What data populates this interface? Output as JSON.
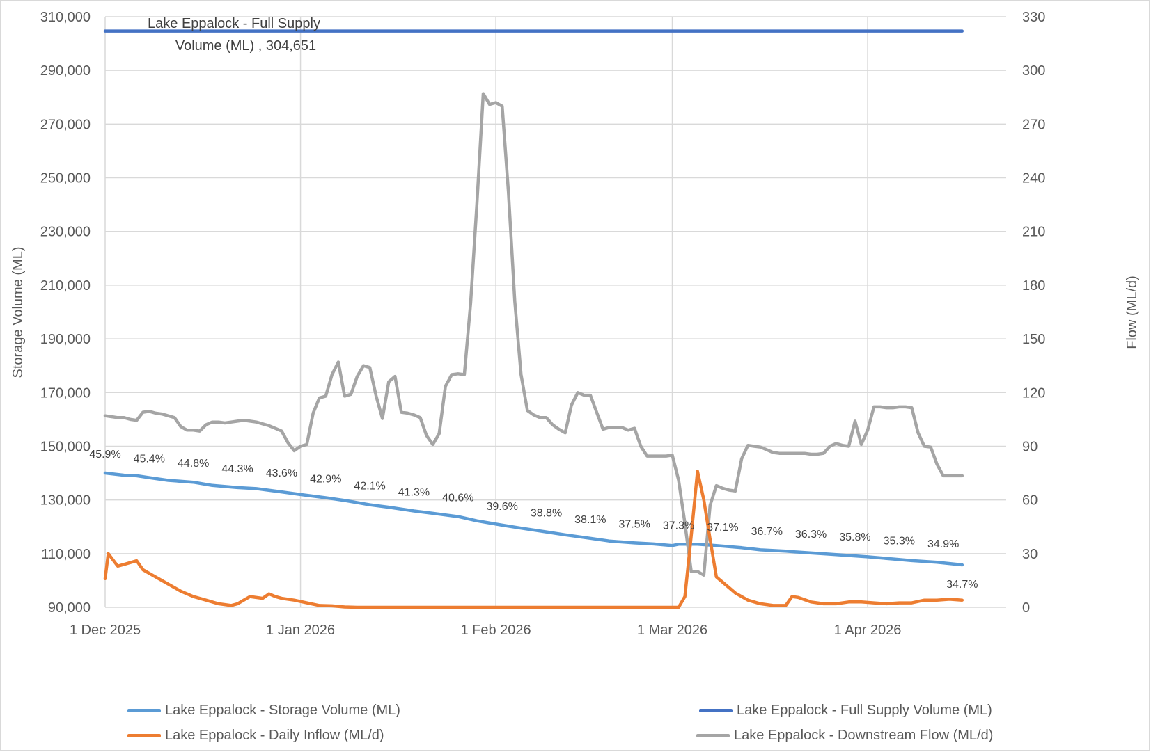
{
  "chart_data": {
    "type": "line",
    "title": "",
    "x_start": "1 Dec 2025",
    "x_tick_labels": [
      "1 Dec 2025",
      "1 Jan 2026",
      "1 Feb 2026",
      "1 Mar 2026",
      "1 Apr 2026"
    ],
    "x_tick_days": [
      0,
      31,
      62,
      90,
      121
    ],
    "ylabel_left": "Storage Volume (ML)",
    "ylabel_right": "Flow (ML/d)",
    "ylim_left": [
      90000,
      310000
    ],
    "ylim_right": [
      0,
      330
    ],
    "left_ticks": [
      "90,000",
      "110,000",
      "130,000",
      "150,000",
      "170,000",
      "190,000",
      "210,000",
      "230,000",
      "250,000",
      "270,000",
      "290,000",
      "310,000"
    ],
    "right_ticks": [
      "0",
      "30",
      "60",
      "90",
      "120",
      "150",
      "180",
      "210",
      "240",
      "270",
      "300",
      "330"
    ],
    "grid": true,
    "legend_position": "bottom",
    "series": [
      {
        "name": "Lake Eppalock - Storage Volume (ML)",
        "axis": "left",
        "color": "#5b9bd5",
        "days": [
          0,
          3,
          5,
          7,
          10,
          14,
          17,
          21,
          24,
          28,
          31,
          35,
          38,
          42,
          45,
          49,
          52,
          56,
          59,
          63,
          66,
          70,
          73,
          77,
          80,
          84,
          87,
          90,
          91,
          94,
          97,
          101,
          104,
          108,
          111,
          115,
          118,
          121,
          125,
          128,
          132,
          134,
          136
        ],
        "values": [
          140000,
          139200,
          139000,
          138300,
          137300,
          136600,
          135400,
          134600,
          134200,
          133000,
          132000,
          130800,
          129800,
          128200,
          127300,
          125900,
          125000,
          123800,
          122200,
          120600,
          119500,
          118100,
          117000,
          115700,
          114700,
          114000,
          113600,
          113000,
          113500,
          113500,
          113000,
          112200,
          111400,
          110900,
          110400,
          109800,
          109300,
          108800,
          108000,
          107400,
          106800,
          106300,
          105800
        ]
      },
      {
        "name": "Lake Eppalock - Full Supply Volume (ML)",
        "axis": "left",
        "color": "#4472c4",
        "days": [
          0,
          136
        ],
        "values": [
          304651,
          304651
        ]
      },
      {
        "name": "Lake Eppalock - Daily Inflow (ML/d)",
        "axis": "right",
        "color": "#ed7d31",
        "days": [
          0,
          0.5,
          2,
          3,
          5,
          6,
          8,
          10,
          12,
          14,
          16,
          18,
          19,
          20,
          21,
          22,
          23,
          24,
          25,
          26,
          27,
          28,
          30,
          32,
          34,
          36,
          38,
          40,
          41,
          42,
          44,
          90,
          91,
          92,
          93,
          94,
          95,
          96,
          97,
          98,
          100,
          102,
          104,
          106,
          108,
          109,
          110,
          112,
          114,
          116,
          118,
          120,
          122,
          124,
          126,
          128,
          130,
          132,
          134,
          136
        ],
        "values": [
          16,
          30,
          23,
          24,
          26,
          21,
          17,
          13,
          9,
          6,
          4,
          2,
          1.5,
          1,
          2,
          4,
          6,
          5.5,
          5,
          7.5,
          6,
          5,
          4,
          2.5,
          1,
          0.8,
          0.2,
          0,
          0,
          0,
          0,
          0,
          0,
          6,
          40,
          76,
          60,
          38,
          17,
          14,
          8,
          4,
          2,
          1,
          1,
          6,
          5.5,
          3,
          2,
          2,
          3,
          3,
          2.5,
          2,
          2.5,
          2.5,
          4,
          4,
          4.5,
          4
        ]
      },
      {
        "name": "Lake Eppalock - Downstream Flow (ML/d)",
        "axis": "right",
        "color": "#a5a5a5",
        "days": [
          0,
          1,
          2,
          3,
          4,
          5,
          6,
          7,
          8,
          9,
          10,
          11,
          12,
          13,
          14,
          15,
          16,
          17,
          18,
          19,
          20,
          21,
          22,
          23,
          24,
          25,
          26,
          27,
          28,
          29,
          30,
          31,
          32,
          33,
          34,
          35,
          36,
          37,
          38,
          39,
          40,
          41,
          42,
          43,
          44,
          45,
          46,
          47,
          48,
          49,
          50,
          51,
          52,
          53,
          54,
          55,
          56,
          57,
          58,
          59,
          60,
          61,
          62,
          63,
          64,
          65,
          66,
          67,
          68,
          69,
          70,
          71,
          72,
          73,
          74,
          75,
          76,
          77,
          78,
          79,
          80,
          81,
          82,
          83,
          84,
          85,
          86,
          87,
          88,
          89,
          90,
          91,
          92,
          93,
          94,
          95,
          96,
          97,
          98,
          99,
          100,
          101,
          102,
          103,
          104,
          105,
          106,
          107,
          108,
          109,
          110,
          111,
          112,
          113,
          114,
          115,
          116,
          117,
          118,
          119,
          120,
          121,
          122,
          123,
          124,
          125,
          126,
          127,
          128,
          129,
          130,
          131,
          132,
          133,
          134,
          135,
          136
        ],
        "values": [
          107,
          106.5,
          106,
          106,
          105,
          104.5,
          109,
          109.5,
          108.5,
          108,
          107,
          106,
          101,
          99,
          99,
          98.5,
          102,
          103.5,
          103.5,
          103,
          103.5,
          104,
          104.5,
          104,
          103.5,
          102.5,
          101.5,
          100,
          98.5,
          92,
          87.5,
          90,
          91,
          108.5,
          117,
          118,
          130,
          137,
          118,
          119,
          129,
          135,
          134,
          118,
          105.5,
          126,
          129,
          109,
          108.5,
          107.5,
          106,
          96,
          91,
          97,
          123.5,
          130,
          130.5,
          130,
          170,
          226,
          287,
          281,
          282,
          280,
          232,
          171,
          130,
          110,
          107.5,
          106,
          106,
          102,
          99.5,
          97.5,
          113,
          120,
          118.5,
          118.5,
          109,
          99.5,
          100.5,
          100.5,
          100.5,
          99,
          100,
          90,
          84.5,
          84.5,
          84.5,
          84.5,
          85,
          71,
          47,
          20,
          20,
          18,
          57,
          68,
          66.5,
          65.5,
          65,
          83,
          90.5,
          90,
          89.5,
          88,
          86.5,
          86,
          86,
          86,
          86,
          86,
          85.5,
          85.5,
          86,
          90,
          91.5,
          90.5,
          90,
          104,
          91,
          99,
          112,
          112,
          111.5,
          111.5,
          112,
          112,
          111.5,
          97.5,
          90,
          89.5,
          80,
          73.5,
          73.5,
          73.5,
          73.5,
          74,
          74
        ]
      }
    ],
    "annotations": {
      "full_supply_label_line1": "Lake Eppalock - Full Supply",
      "full_supply_label_line2": "Volume (ML) ,  304,651",
      "pct_labels": [
        {
          "day": 0,
          "text": "45.9%"
        },
        {
          "day": 7,
          "text": "45.4%"
        },
        {
          "day": 14,
          "text": "44.8%"
        },
        {
          "day": 21,
          "text": "44.3%"
        },
        {
          "day": 28,
          "text": "43.6%"
        },
        {
          "day": 35,
          "text": "42.9%"
        },
        {
          "day": 42,
          "text": "42.1%"
        },
        {
          "day": 49,
          "text": "41.3%"
        },
        {
          "day": 56,
          "text": "40.6%"
        },
        {
          "day": 63,
          "text": "39.6%"
        },
        {
          "day": 70,
          "text": "38.8%"
        },
        {
          "day": 77,
          "text": "38.1%"
        },
        {
          "day": 84,
          "text": "37.5%"
        },
        {
          "day": 91,
          "text": "37.3%"
        },
        {
          "day": 98,
          "text": "37.1%"
        },
        {
          "day": 105,
          "text": "36.7%"
        },
        {
          "day": 112,
          "text": "36.3%"
        },
        {
          "day": 119,
          "text": "35.8%"
        },
        {
          "day": 126,
          "text": "35.3%"
        },
        {
          "day": 133,
          "text": "34.9%"
        },
        {
          "day": 136,
          "text": "34.7%"
        }
      ]
    }
  },
  "legend": {
    "storage": "Lake Eppalock - Storage Volume (ML)",
    "full_supply": "Lake Eppalock - Full Supply Volume (ML)",
    "inflow": "Lake Eppalock - Daily Inflow (ML/d)",
    "downstream": "Lake Eppalock - Downstream Flow (ML/d)"
  }
}
